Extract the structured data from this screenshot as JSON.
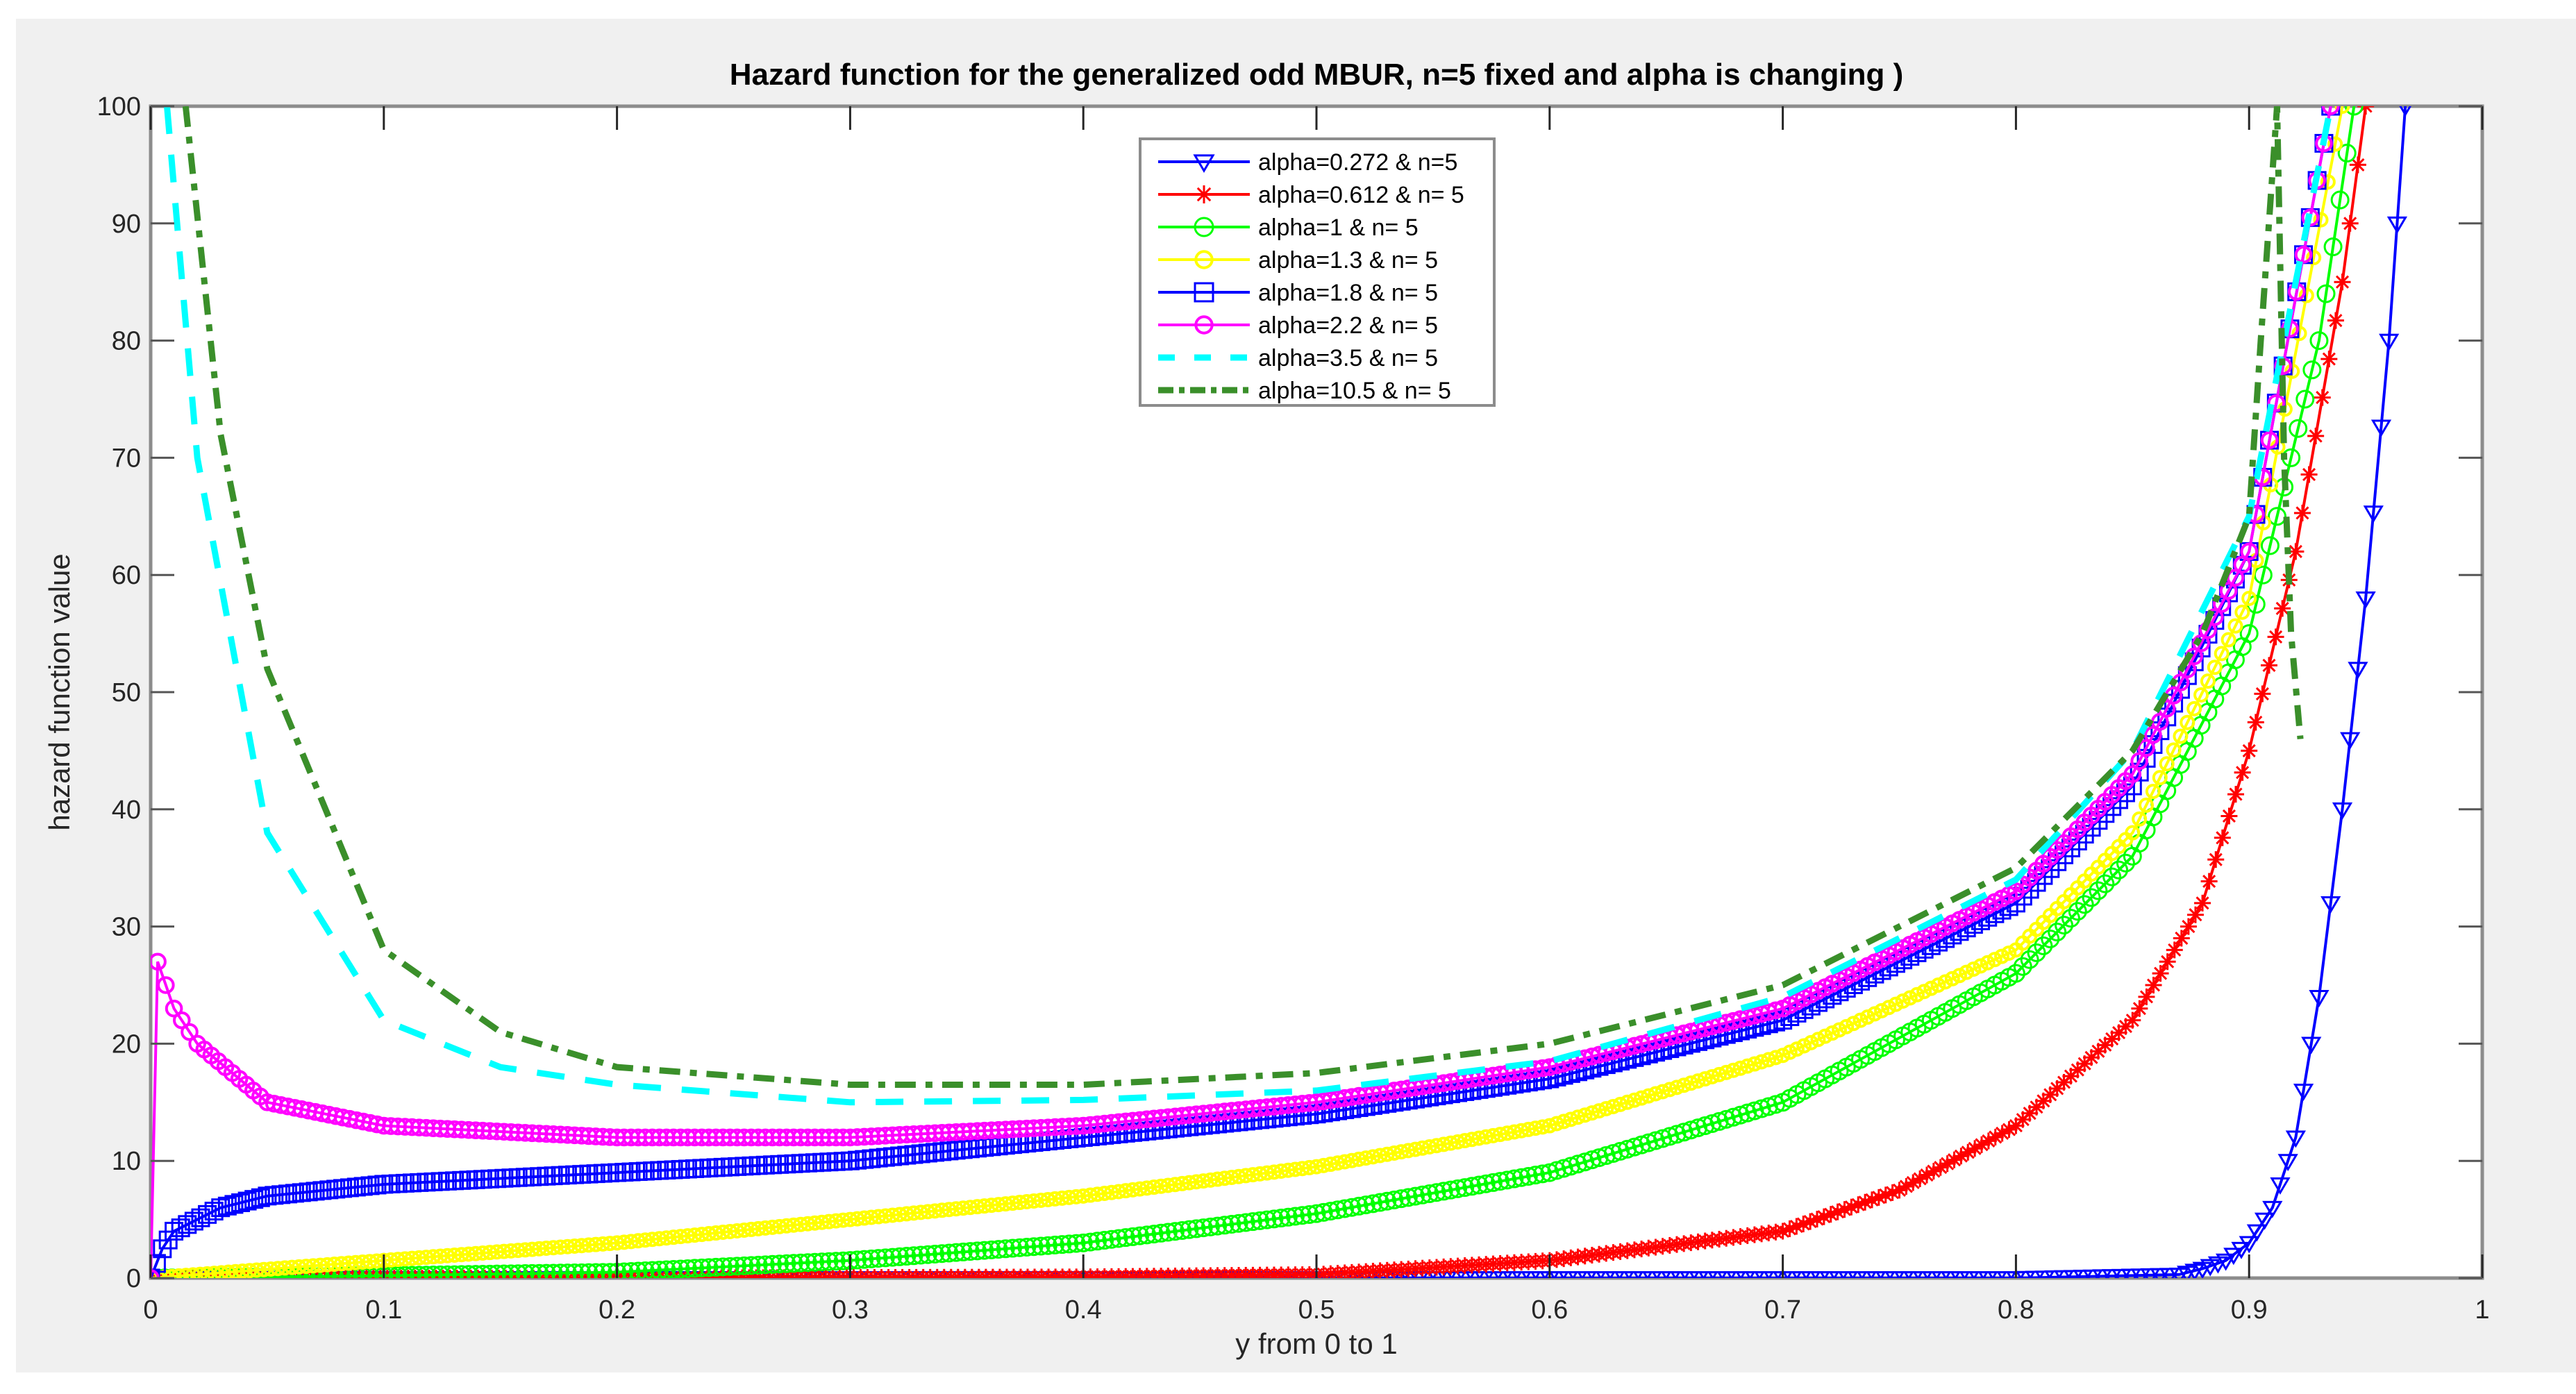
{
  "chart_data": {
    "type": "line",
    "title": "Hazard function for the generalized odd MBUR, n=5 fixed and alpha is changing )",
    "xlabel": "y from 0 to 1",
    "ylabel": "hazard function value",
    "xlim": [
      0,
      1
    ],
    "ylim": [
      0,
      100
    ],
    "x_ticks": [
      "0",
      "0.1",
      "0.2",
      "0.3",
      "0.4",
      "0.5",
      "0.6",
      "0.7",
      "0.8",
      "0.9",
      "1"
    ],
    "y_ticks": [
      "0",
      "10",
      "20",
      "30",
      "40",
      "50",
      "60",
      "70",
      "80",
      "90",
      "100"
    ],
    "grid": false,
    "legend_position": "upper center (inside)",
    "series": [
      {
        "name": "alpha=0.272 & n=5",
        "color": "#0000ff",
        "marker": "triangle-down",
        "line": "solid",
        "x": [
          0,
          0.2,
          0.4,
          0.6,
          0.8,
          0.87,
          0.88,
          0.89,
          0.9,
          0.91,
          0.92,
          0.93,
          0.94,
          0.95,
          0.96,
          0.967
        ],
        "y": [
          0,
          0,
          0,
          0,
          0,
          0.3,
          0.8,
          1.5,
          3,
          6,
          12,
          24,
          40,
          58,
          80,
          100
        ]
      },
      {
        "name": "alpha=0.612 & n= 5",
        "color": "#ff0000",
        "marker": "asterisk",
        "line": "solid",
        "x": [
          0,
          0.2,
          0.4,
          0.5,
          0.6,
          0.7,
          0.75,
          0.8,
          0.85,
          0.88,
          0.9,
          0.92,
          0.94,
          0.95
        ],
        "y": [
          0,
          0,
          0.1,
          0.3,
          1.5,
          4,
          7.5,
          13,
          22,
          32,
          45,
          62,
          85,
          100
        ]
      },
      {
        "name": "alpha=1 & n= 5",
        "color": "#00ff00",
        "marker": "circle",
        "line": "solid",
        "x": [
          0,
          0.1,
          0.2,
          0.3,
          0.4,
          0.5,
          0.6,
          0.7,
          0.8,
          0.85,
          0.9,
          0.93,
          0.945
        ],
        "y": [
          0,
          0.2,
          0.5,
          1.5,
          3,
          5.5,
          9,
          15,
          26,
          36,
          55,
          80,
          100
        ]
      },
      {
        "name": "alpha=1.3 & n= 5",
        "color": "#ffff00",
        "marker": "star",
        "line": "solid",
        "x": [
          0,
          0.1,
          0.2,
          0.3,
          0.4,
          0.5,
          0.6,
          0.7,
          0.8,
          0.85,
          0.9,
          0.94
        ],
        "y": [
          0,
          1.5,
          3,
          5,
          7,
          9.5,
          13,
          19,
          28,
          38,
          58,
          100
        ]
      },
      {
        "name": "alpha=1.8 & n= 5",
        "color": "#0000ff",
        "marker": "square",
        "line": "solid",
        "x": [
          0,
          0.005,
          0.01,
          0.03,
          0.05,
          0.1,
          0.2,
          0.3,
          0.4,
          0.5,
          0.6,
          0.7,
          0.8,
          0.85,
          0.9,
          0.935
        ],
        "y": [
          0,
          2.5,
          4,
          6,
          7,
          8,
          9,
          10,
          12,
          14,
          17,
          22,
          32,
          42,
          62,
          100
        ]
      },
      {
        "name": "alpha=2.2 & n= 5",
        "color": "#ff00ff",
        "marker": "hexagram",
        "line": "solid",
        "x": [
          0,
          0.003,
          0.01,
          0.02,
          0.05,
          0.1,
          0.2,
          0.3,
          0.4,
          0.5,
          0.6,
          0.7,
          0.8,
          0.85,
          0.9,
          0.935
        ],
        "y": [
          0,
          27,
          23,
          20,
          15,
          13,
          12,
          12,
          13,
          15,
          18,
          23,
          33,
          43,
          62,
          100
        ]
      },
      {
        "name": "alpha=3.5 & n= 5",
        "color": "#00ffff",
        "marker": "none",
        "line": "dashed",
        "x": [
          0.007,
          0.02,
          0.05,
          0.1,
          0.15,
          0.2,
          0.3,
          0.4,
          0.5,
          0.6,
          0.7,
          0.8,
          0.85,
          0.9,
          0.935
        ],
        "y": [
          100,
          70,
          38,
          22,
          18,
          16.5,
          15,
          15.2,
          16,
          18.5,
          24,
          34,
          45,
          65,
          100
        ]
      },
      {
        "name": "alpha=10.5 & n= 5",
        "color": "#3a8f2a",
        "marker": "none",
        "line": "dash-dot",
        "x": [
          0.015,
          0.03,
          0.05,
          0.1,
          0.15,
          0.2,
          0.3,
          0.4,
          0.5,
          0.6,
          0.7,
          0.8,
          0.85,
          0.88,
          0.9,
          0.905,
          0.912,
          0.915,
          0.918,
          0.922
        ],
        "y": [
          100,
          72,
          52,
          28,
          21,
          18,
          16.5,
          16.5,
          17.5,
          20,
          25,
          35,
          45,
          55,
          65,
          80,
          100,
          70,
          55,
          46
        ]
      }
    ]
  }
}
